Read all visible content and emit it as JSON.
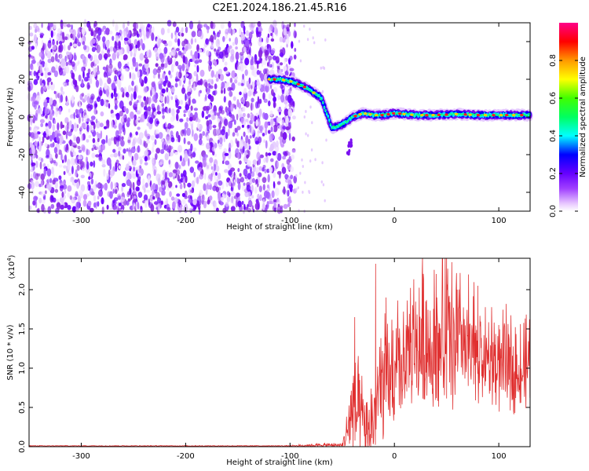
{
  "chart_data": [
    {
      "type": "heatmap",
      "title": "C2E1.2024.186.21.45.R16",
      "xlabel": "Height of straight line (km)",
      "ylabel": "Frequency (Hz)",
      "xlim": [
        -350,
        130
      ],
      "ylim": [
        -50,
        50
      ],
      "x_ticks": [
        -300,
        -200,
        -100,
        0,
        100
      ],
      "y_ticks": [
        -40,
        -20,
        0,
        20,
        40
      ],
      "colorbar": {
        "label": "Normalized spectral amplitude",
        "range": [
          0,
          1
        ],
        "ticks": [
          "0.0",
          "0.2",
          "0.4",
          "0.6",
          "0.8"
        ],
        "tick_values": [
          0,
          0.2,
          0.4,
          0.6,
          0.8
        ],
        "colormap": "rainbow"
      },
      "noise_region_x": [
        -350,
        -95
      ],
      "ridge": {
        "x": [
          -120,
          -110,
          -100,
          -90,
          -80,
          -70,
          -60,
          -50,
          -40,
          -30,
          -20,
          -10,
          0,
          20,
          40,
          60,
          80,
          100,
          130
        ],
        "y": [
          20,
          20,
          19,
          17,
          14,
          10,
          -6,
          -4,
          0,
          2,
          1,
          1,
          2,
          1,
          1,
          1.5,
          1,
          1,
          1
        ]
      }
    },
    {
      "type": "line",
      "xlabel": "Height of straight line (km)",
      "ylabel": "SNR (10 * v/v)",
      "scale_label": "(x10",
      "scale_exp": "4",
      "scale_close": ")",
      "xlim": [
        -350,
        130
      ],
      "ylim": [
        0,
        2.4
      ],
      "x_ticks": [
        -300,
        -200,
        -100,
        0,
        100
      ],
      "y_ticks": [
        "0.0",
        "0.5",
        "1.0",
        "1.5",
        "2.0"
      ],
      "y_tick_values": [
        0,
        0.5,
        1.0,
        1.5,
        2.0
      ],
      "series": [
        {
          "color": "#e03030",
          "envelope": {
            "x": [
              -350,
              -100,
              -70,
              -50,
              -45,
              -40,
              -35,
              -30,
              -25,
              -20,
              -15,
              -10,
              0,
              10,
              20,
              30,
              40,
              50,
              60,
              70,
              80,
              90,
              100,
              110,
              120,
              130
            ],
            "base": [
              0.01,
              0.01,
              0.02,
              0.02,
              0.2,
              0.5,
              0.4,
              0.3,
              0.15,
              0.4,
              0.7,
              0.75,
              0.9,
              1.1,
              1.25,
              1.35,
              1.3,
              1.4,
              1.35,
              1.25,
              1.2,
              1.1,
              1.05,
              1.0,
              1.0,
              1.0
            ],
            "amp": [
              0.005,
              0.005,
              0.02,
              0.02,
              0.25,
              0.6,
              0.55,
              0.4,
              0.3,
              0.6,
              0.6,
              0.7,
              0.6,
              0.6,
              0.65,
              0.7,
              0.75,
              0.9,
              0.75,
              0.6,
              0.55,
              0.5,
              0.45,
              0.45,
              0.4,
              0.4
            ]
          },
          "peaks": [
            [
              -38,
              1.65
            ],
            [
              -18,
              2.33
            ],
            [
              -8,
              1.9
            ],
            [
              40,
              2.2
            ],
            [
              50,
              2.42
            ],
            [
              55,
              2.35
            ],
            [
              80,
              2.05
            ],
            [
              100,
              1.55
            ]
          ]
        }
      ]
    }
  ]
}
